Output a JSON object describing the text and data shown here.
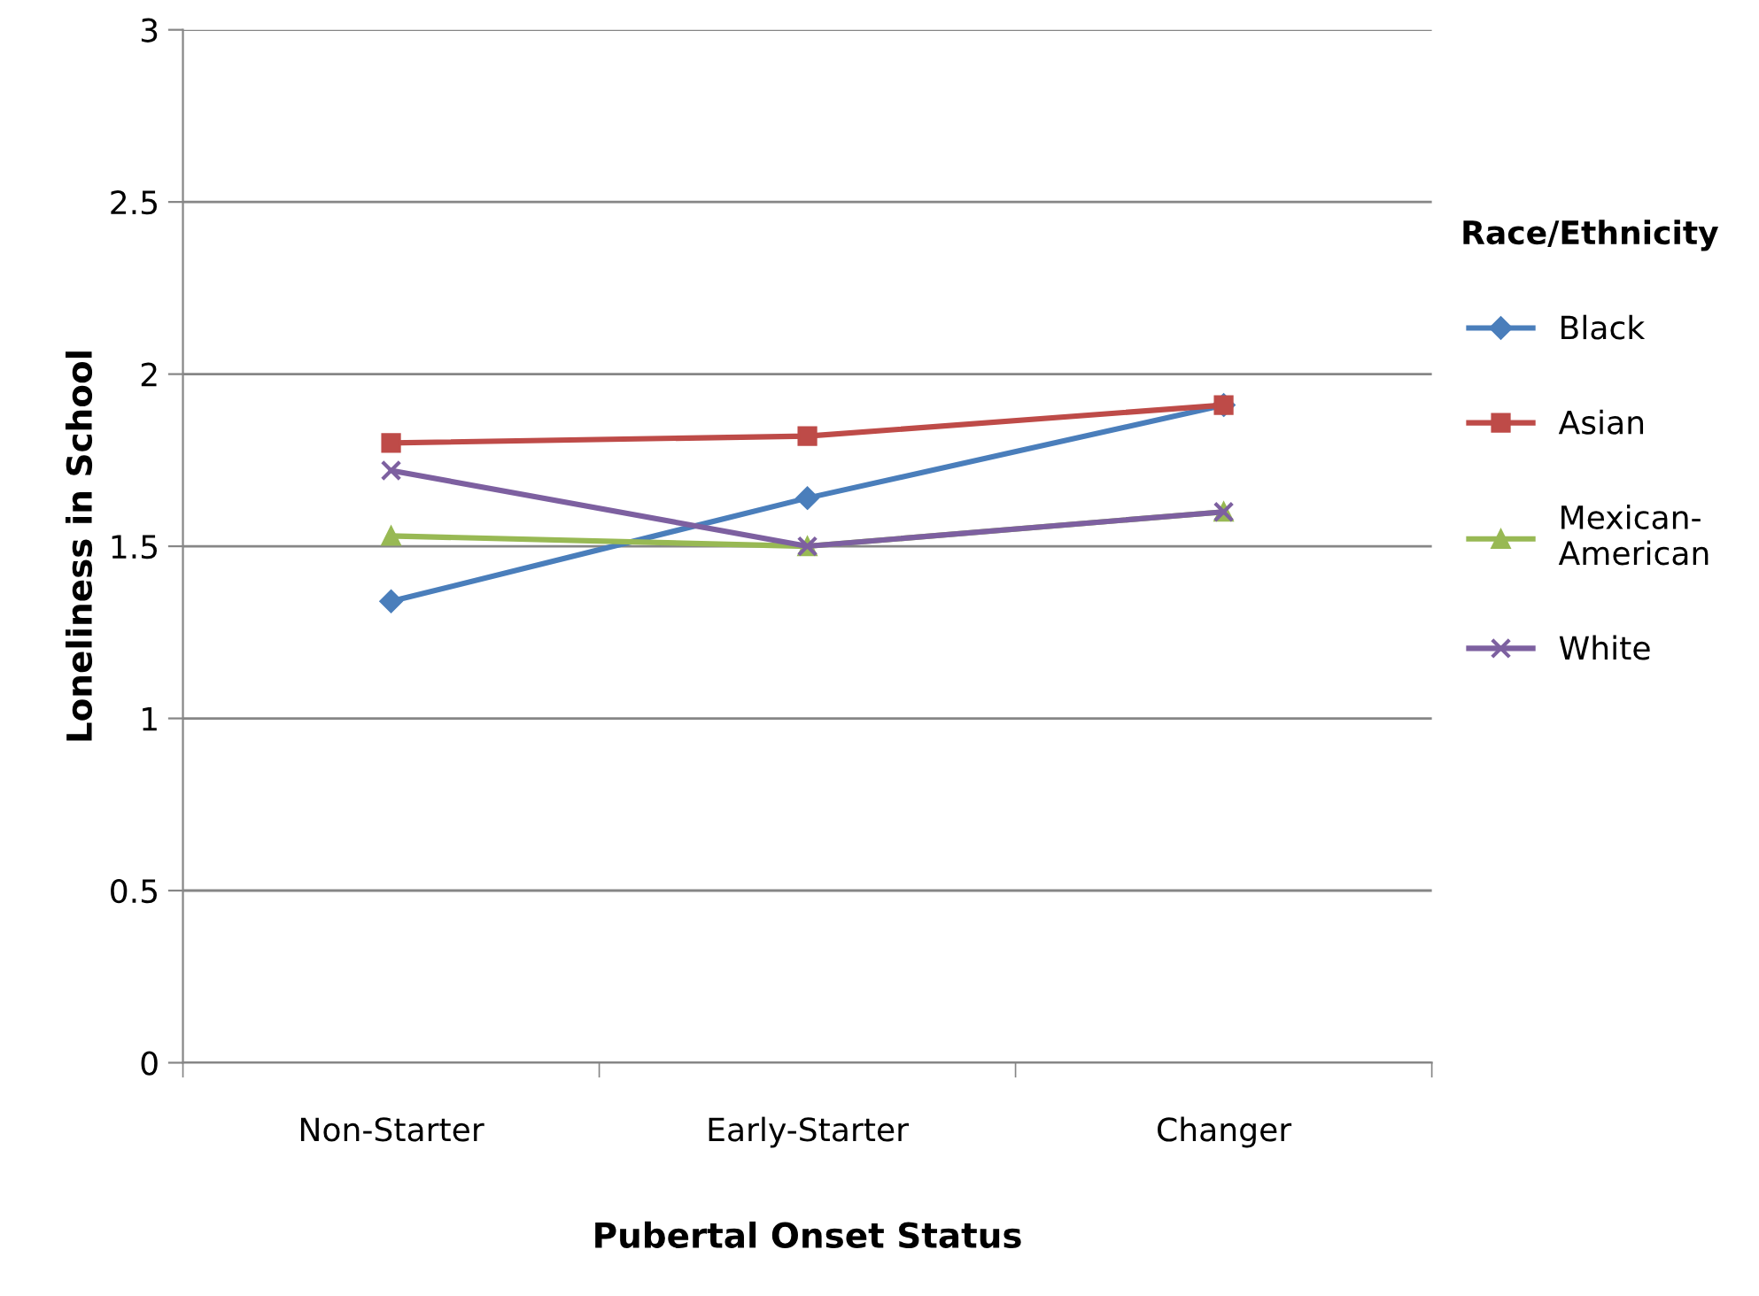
{
  "chart_data": {
    "type": "line",
    "xlabel": "Pubertal Onset Status",
    "ylabel": "Loneliness in School",
    "legend_title": "Race/Ethnicity",
    "categories": [
      "Non-Starter",
      "Early-Starter",
      "Changer"
    ],
    "series": [
      {
        "name": "Black",
        "color": "#4a7ebb",
        "marker": "diamond",
        "values": [
          1.34,
          1.64,
          1.91
        ]
      },
      {
        "name": "Asian",
        "color": "#be4b48",
        "marker": "square",
        "values": [
          1.8,
          1.82,
          1.91
        ]
      },
      {
        "name": "Mexican-\nAmerican",
        "color": "#98b954",
        "marker": "triangle",
        "values": [
          1.53,
          1.5,
          1.6
        ]
      },
      {
        "name": "White",
        "color": "#7d60a0",
        "marker": "cross",
        "values": [
          1.72,
          1.5,
          1.6
        ]
      }
    ],
    "ylim": [
      0,
      3
    ],
    "yticks": [
      0,
      0.5,
      1,
      1.5,
      2,
      2.5,
      3
    ],
    "grid": "y",
    "legend": "right",
    "line_style": "solid"
  }
}
